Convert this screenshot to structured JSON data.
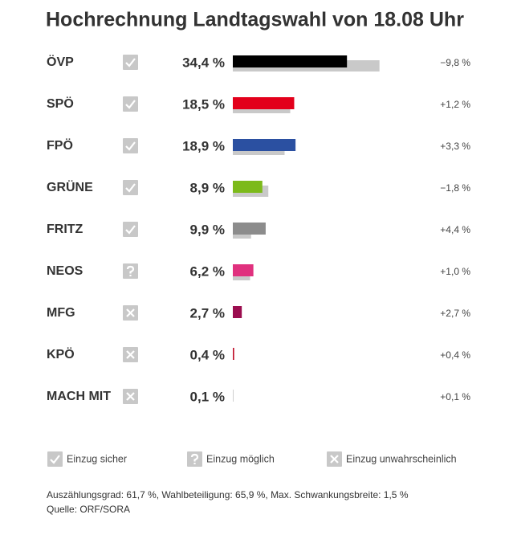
{
  "chart_data": {
    "type": "bar",
    "title": "Hochrechnung Landtagswahl von 18.08 Uhr",
    "categories": [
      "ÖVP",
      "SPÖ",
      "FPÖ",
      "GRÜNE",
      "FRITZ",
      "NEOS",
      "MFG",
      "KPÖ",
      "MACH MIT"
    ],
    "values": [
      34.4,
      18.5,
      18.9,
      8.9,
      9.9,
      6.2,
      2.7,
      0.4,
      0.1
    ],
    "value_labels": [
      "34,4 %",
      "18,5 %",
      "18,9 %",
      "8,9 %",
      "9,9 %",
      "6,2 %",
      "2,7 %",
      "0,4 %",
      "0,1 %"
    ],
    "colors": [
      "#000000",
      "#e3001b",
      "#2b50a1",
      "#7cba1a",
      "#8c8c8c",
      "#e0317e",
      "#9b0d4f",
      "#c0102a",
      "#8c8c8c"
    ],
    "previous_values": [
      44.2,
      17.3,
      15.6,
      10.7,
      5.5,
      5.2,
      0,
      0,
      0
    ],
    "previous_color": "#c9c9c9",
    "change_values": [
      -9.8,
      1.2,
      3.3,
      -1.8,
      4.4,
      1.0,
      2.7,
      0.4,
      0.1
    ],
    "change_labels": [
      "−9,8 %",
      "+1,2 %",
      "+3,3 %",
      "−1,8 %",
      "+4,4 %",
      "+1,0 %",
      "+2,7 %",
      "+0,4 %",
      "+0,1 %"
    ],
    "status": [
      0,
      0,
      0,
      0,
      0,
      1,
      2,
      2,
      2
    ],
    "legend": [
      "Einzug sicher",
      "Einzug möglich",
      "Einzug unwahrscheinlich"
    ],
    "xlim": [
      0,
      60
    ],
    "footnotes": [
      "Auszählungsgrad: 61,7 %, Wahlbeteiligung: 65,9 %, Max. Schwankungsbreite: 1,5 %",
      "Quelle: ORF/SORA"
    ]
  }
}
